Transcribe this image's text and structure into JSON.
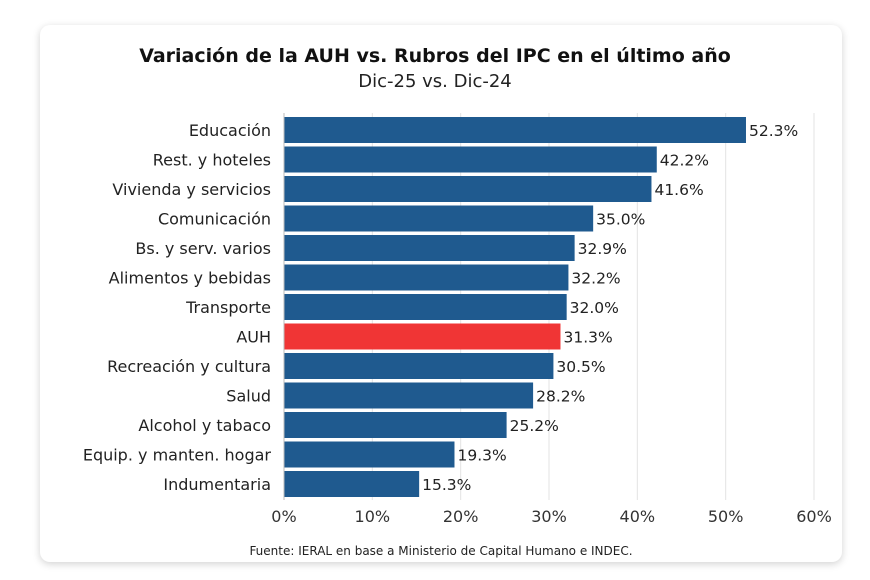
{
  "chart_data": {
    "type": "bar",
    "orientation": "horizontal",
    "title": "Variación de la AUH vs. Rubros del IPC en el último año",
    "subtitle": "Dic-25 vs. Dic-24",
    "source": "Fuente: IERAL en base a Ministerio de Capital Humano e INDEC.",
    "categories": [
      "Educación",
      "Rest. y hoteles",
      "Vivienda y servicios",
      "Comunicación",
      "Bs. y serv. varios",
      "Alimentos y bebidas",
      "Transporte",
      "AUH",
      "Recreación y cultura",
      "Salud",
      "Alcohol y tabaco",
      "Equip. y manten. hogar",
      "Indumentaria"
    ],
    "values": [
      52.3,
      42.2,
      41.6,
      35.0,
      32.9,
      32.2,
      32.0,
      31.3,
      30.5,
      28.2,
      25.2,
      19.3,
      15.3
    ],
    "data_labels": [
      "52.3%",
      "42.2%",
      "41.6%",
      "35.0%",
      "32.9%",
      "32.2%",
      "32.0%",
      "31.3%",
      "30.5%",
      "28.2%",
      "25.2%",
      "19.3%",
      "15.3%"
    ],
    "highlight": "AUH",
    "xlim": [
      0,
      60
    ],
    "xticks": [
      "0%",
      "10%",
      "20%",
      "30%",
      "40%",
      "50%",
      "60%"
    ],
    "grid": true,
    "colors": {
      "bar": "#1f5a8f",
      "highlight": "#f03535",
      "grid": "#e3e3e3"
    }
  }
}
